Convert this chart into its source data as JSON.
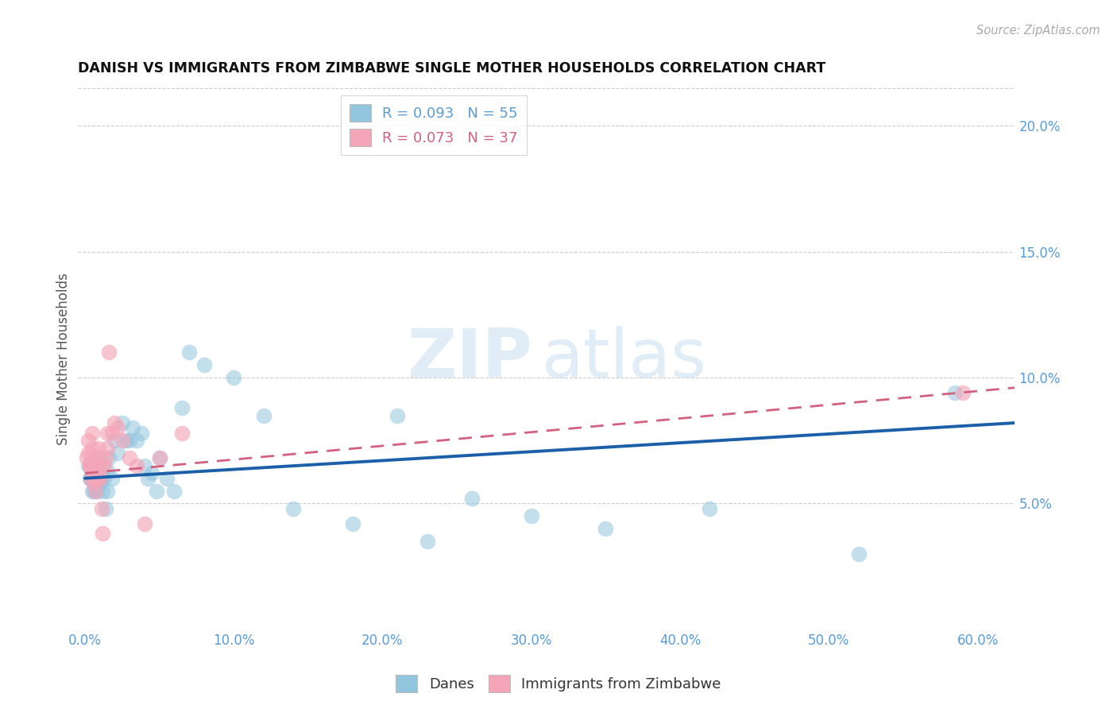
{
  "title": "DANISH VS IMMIGRANTS FROM ZIMBABWE SINGLE MOTHER HOUSEHOLDS CORRELATION CHART",
  "source": "Source: ZipAtlas.com",
  "ylabel": "Single Mother Households",
  "xlabel_ticks": [
    "0.0%",
    "10.0%",
    "20.0%",
    "30.0%",
    "40.0%",
    "50.0%",
    "60.0%"
  ],
  "xlabel_vals": [
    0.0,
    0.1,
    0.2,
    0.3,
    0.4,
    0.5,
    0.6
  ],
  "ylabel_ticks": [
    "5.0%",
    "10.0%",
    "15.0%",
    "20.0%"
  ],
  "ylabel_vals": [
    0.05,
    0.1,
    0.15,
    0.2
  ],
  "xlim": [
    -0.005,
    0.625
  ],
  "ylim": [
    0.0,
    0.215
  ],
  "legend_blue_label": "R = 0.093   N = 55",
  "legend_pink_label": "R = 0.073   N = 37",
  "legend_bottom": [
    "Danes",
    "Immigrants from Zimbabwe"
  ],
  "blue_color": "#92c5de",
  "pink_color": "#f4a6b8",
  "blue_line_color": "#1a5fa8",
  "pink_line_color": "#d46080",
  "watermark_zip": "ZIP",
  "watermark_atlas": "atlas",
  "danes_x": [
    0.002,
    0.003,
    0.004,
    0.005,
    0.005,
    0.006,
    0.006,
    0.007,
    0.007,
    0.008,
    0.008,
    0.009,
    0.009,
    0.01,
    0.01,
    0.01,
    0.011,
    0.012,
    0.012,
    0.013,
    0.014,
    0.015,
    0.015,
    0.016,
    0.018,
    0.02,
    0.022,
    0.025,
    0.028,
    0.03,
    0.032,
    0.035,
    0.038,
    0.04,
    0.042,
    0.045,
    0.048,
    0.05,
    0.055,
    0.06,
    0.065,
    0.07,
    0.08,
    0.1,
    0.12,
    0.14,
    0.18,
    0.21,
    0.23,
    0.26,
    0.3,
    0.35,
    0.42,
    0.52,
    0.585
  ],
  "danes_y": [
    0.065,
    0.06,
    0.06,
    0.06,
    0.055,
    0.065,
    0.055,
    0.063,
    0.058,
    0.06,
    0.055,
    0.062,
    0.058,
    0.068,
    0.062,
    0.058,
    0.06,
    0.065,
    0.055,
    0.06,
    0.048,
    0.063,
    0.055,
    0.068,
    0.06,
    0.075,
    0.07,
    0.082,
    0.075,
    0.075,
    0.08,
    0.075,
    0.078,
    0.065,
    0.06,
    0.062,
    0.055,
    0.068,
    0.06,
    0.055,
    0.088,
    0.11,
    0.105,
    0.1,
    0.085,
    0.048,
    0.042,
    0.085,
    0.035,
    0.052,
    0.045,
    0.04,
    0.048,
    0.03,
    0.094
  ],
  "zimbabwe_x": [
    0.001,
    0.002,
    0.002,
    0.003,
    0.003,
    0.004,
    0.004,
    0.005,
    0.005,
    0.005,
    0.006,
    0.006,
    0.007,
    0.007,
    0.008,
    0.008,
    0.009,
    0.009,
    0.01,
    0.01,
    0.011,
    0.012,
    0.013,
    0.014,
    0.015,
    0.015,
    0.016,
    0.018,
    0.02,
    0.022,
    0.025,
    0.03,
    0.035,
    0.04,
    0.05,
    0.065,
    0.59
  ],
  "zimbabwe_y": [
    0.068,
    0.07,
    0.075,
    0.065,
    0.065,
    0.06,
    0.065,
    0.078,
    0.072,
    0.068,
    0.063,
    0.058,
    0.06,
    0.055,
    0.065,
    0.06,
    0.072,
    0.068,
    0.065,
    0.06,
    0.048,
    0.038,
    0.065,
    0.068,
    0.078,
    0.072,
    0.11,
    0.078,
    0.082,
    0.08,
    0.075,
    0.068,
    0.065,
    0.042,
    0.068,
    0.078,
    0.094
  ],
  "danes_trendline_x": [
    0.0,
    0.625
  ],
  "danes_trendline_y": [
    0.06,
    0.082
  ],
  "zimbabwe_trendline_x": [
    0.0,
    0.625
  ],
  "zimbabwe_trendline_y": [
    0.062,
    0.096
  ]
}
